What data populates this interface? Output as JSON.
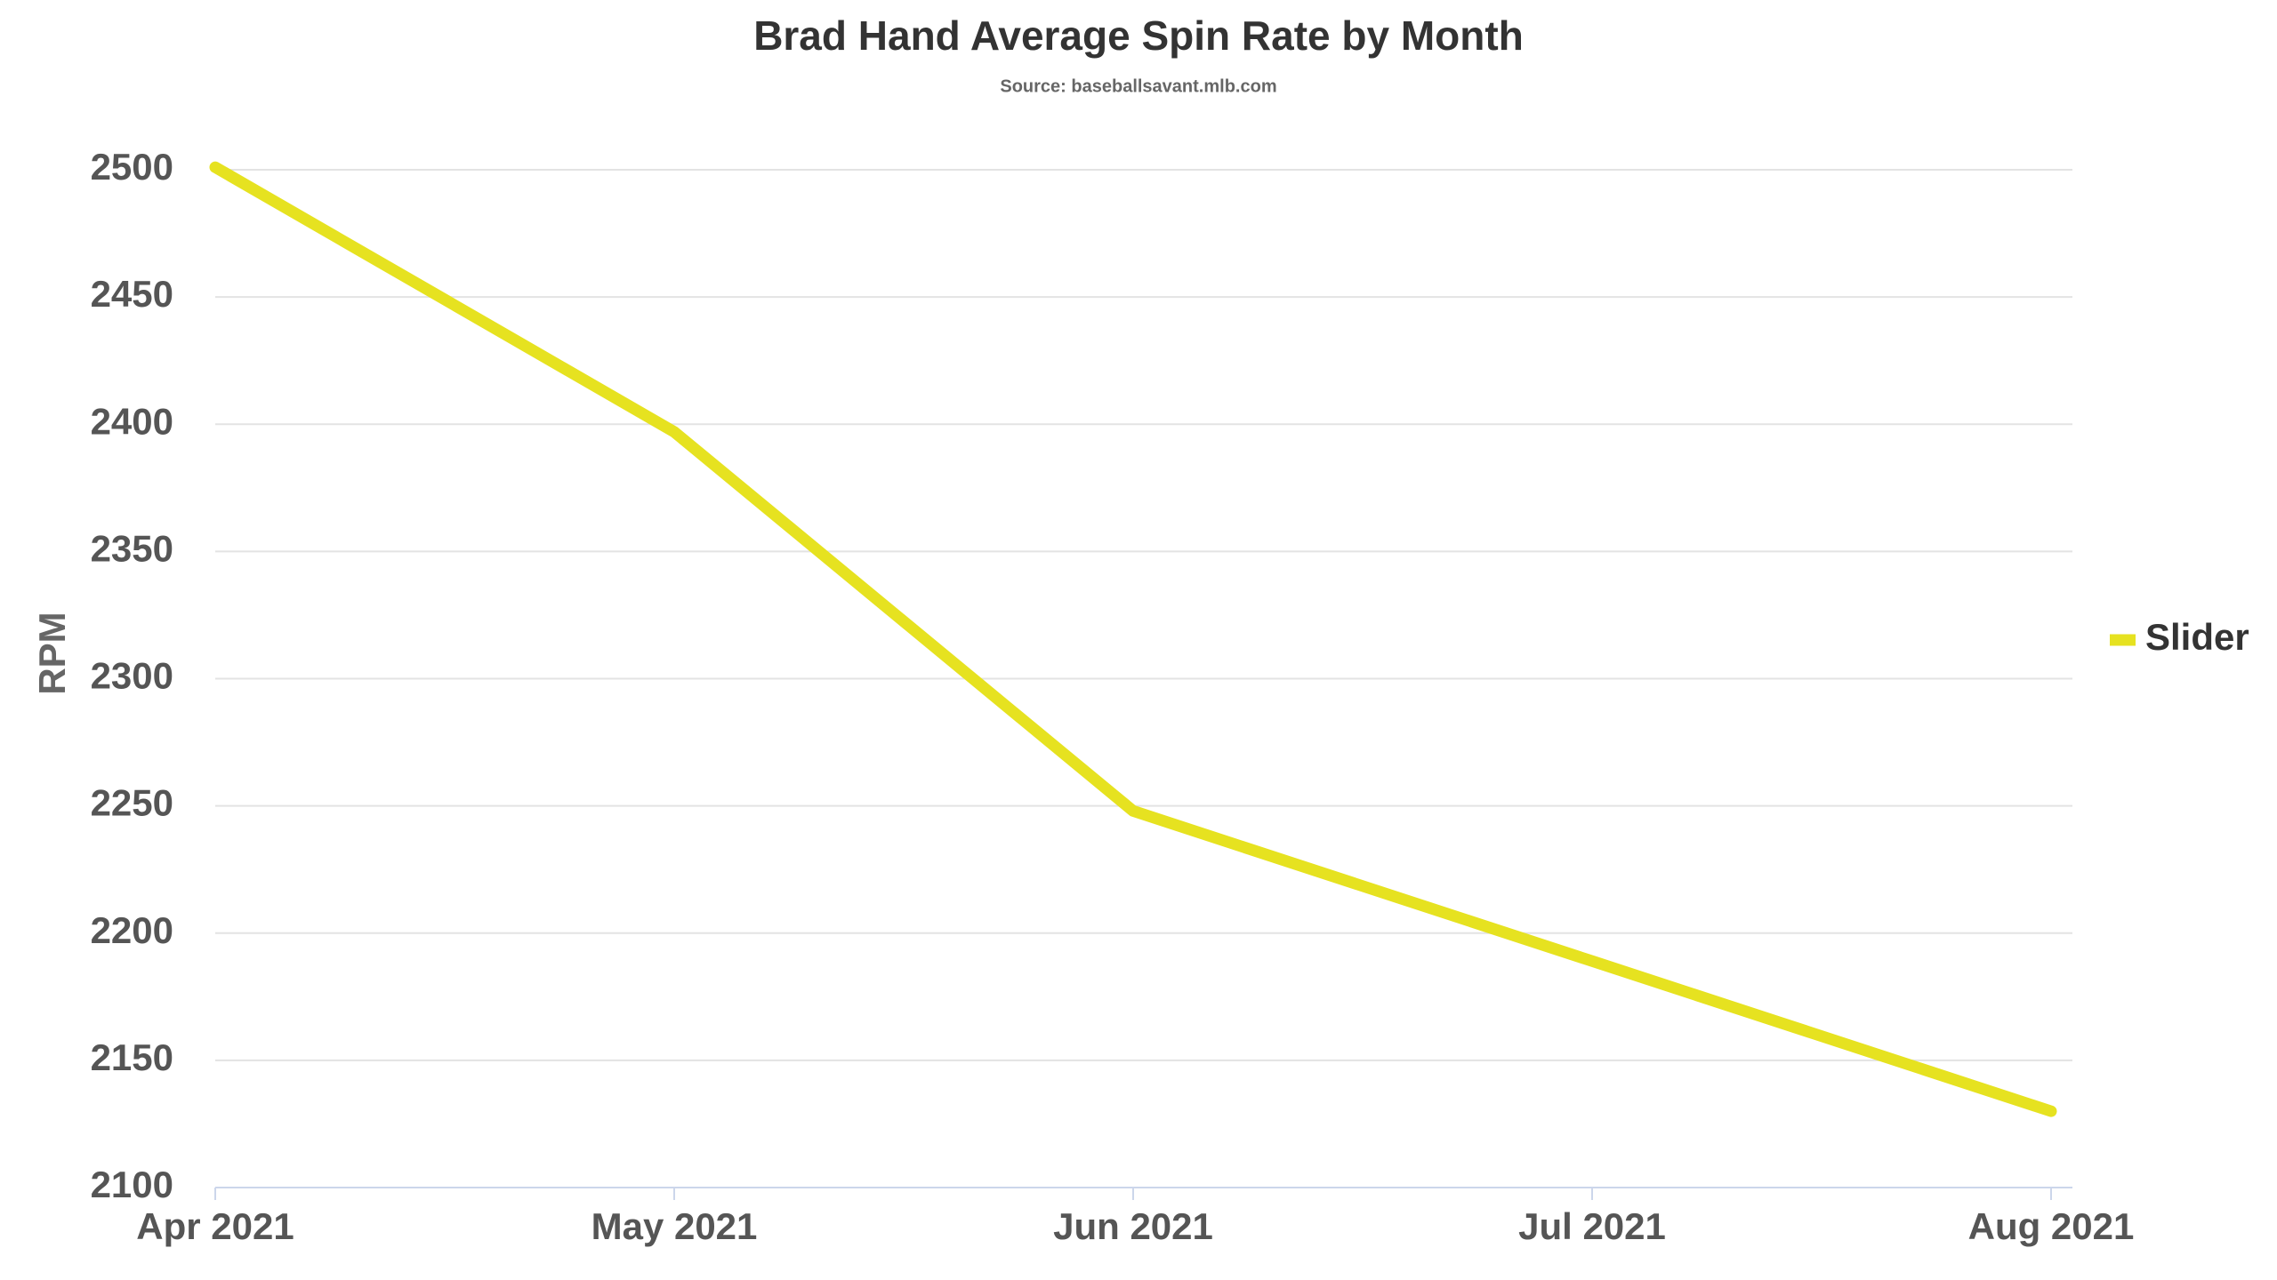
{
  "chart_data": {
    "type": "line",
    "title": "Brad Hand Average Spin Rate by Month",
    "subtitle": "Source: baseballsavant.mlb.com",
    "y_label": "RPM",
    "categories": [
      "Apr 2021",
      "May 2021",
      "Jun 2021",
      "Jul 2021",
      "Aug 2021"
    ],
    "series": [
      {
        "name": "Slider",
        "color": "#e6e220",
        "values": [
          2501,
          2397,
          2248,
          2189,
          2130
        ]
      }
    ],
    "ylim": [
      2100,
      2500
    ],
    "yticks": [
      2100,
      2150,
      2200,
      2250,
      2300,
      2350,
      2400,
      2450,
      2500
    ],
    "grid": true,
    "legend": "right"
  }
}
